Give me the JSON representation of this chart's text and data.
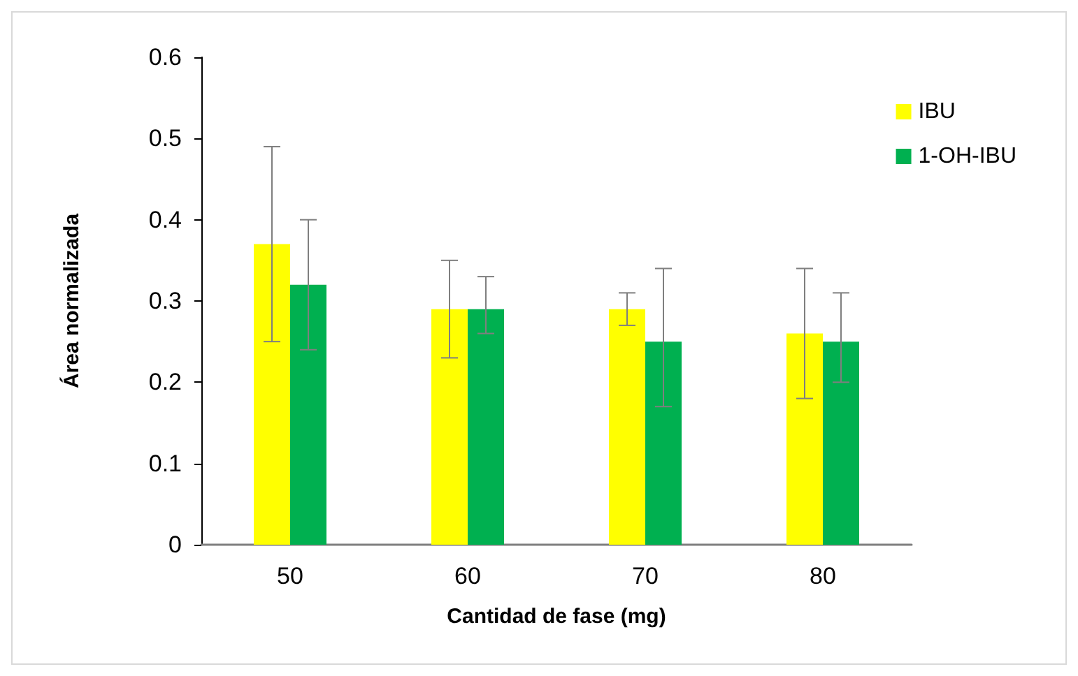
{
  "chart_data": {
    "type": "bar",
    "xlabel": "Cantidad de fase (mg)",
    "ylabel": "Área normalizada",
    "categories": [
      "50",
      "60",
      "70",
      "80"
    ],
    "series": [
      {
        "name": "IBU",
        "color": "#ffff00",
        "values": [
          0.37,
          0.29,
          0.29,
          0.26
        ],
        "errors": [
          [
            0.25,
            0.49
          ],
          [
            0.23,
            0.35
          ],
          [
            0.27,
            0.31
          ],
          [
            0.18,
            0.34
          ]
        ]
      },
      {
        "name": "1-OH-IBU",
        "color": "#00b050",
        "values": [
          0.32,
          0.29,
          0.25,
          0.25
        ],
        "errors": [
          [
            0.24,
            0.4
          ],
          [
            0.26,
            0.33
          ],
          [
            0.17,
            0.34
          ],
          [
            0.2,
            0.31
          ]
        ]
      }
    ],
    "ylim": [
      0,
      0.6
    ],
    "yticks": [
      0,
      0.1,
      0.2,
      0.3,
      0.4,
      0.5,
      0.6
    ],
    "grid": false,
    "legend": "top right"
  }
}
